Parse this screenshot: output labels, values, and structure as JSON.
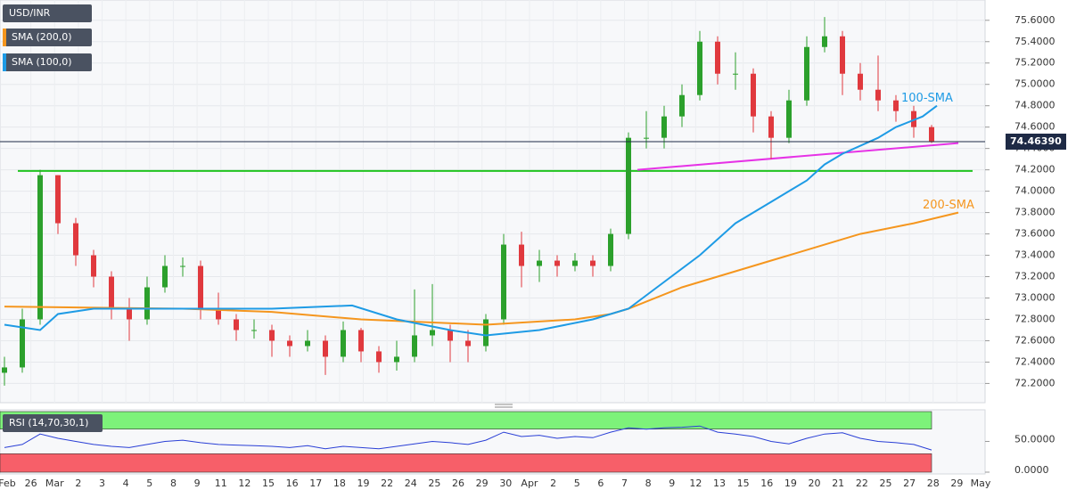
{
  "chart_data": [
    {
      "type": "candlestick",
      "title": "USD/INR",
      "up_color": "#2ca02c",
      "down_color": "#e0393e",
      "xlim": [
        -0.25,
        55
      ],
      "ylim": [
        72.02,
        75.79
      ],
      "yticks": [
        {
          "value": 72.2,
          "label": "72.2000"
        },
        {
          "value": 72.4,
          "label": "72.4000"
        },
        {
          "value": 72.6,
          "label": "72.6000"
        },
        {
          "value": 72.8,
          "label": "72.8000"
        },
        {
          "value": 73.0,
          "label": "73.0000"
        },
        {
          "value": 73.2,
          "label": "73.2000"
        },
        {
          "value": 73.4,
          "label": "73.4000"
        },
        {
          "value": 73.6,
          "label": "73.6000"
        },
        {
          "value": 73.8,
          "label": "73.8000"
        },
        {
          "value": 74.0,
          "label": "74.0000"
        },
        {
          "value": 74.2,
          "label": "74.2000"
        },
        {
          "value": 74.4,
          "label": "74.4000"
        },
        {
          "value": 74.6,
          "label": "74.6000"
        },
        {
          "value": 74.8,
          "label": "74.8000"
        },
        {
          "value": 75.0,
          "label": "75.0000"
        },
        {
          "value": 75.2,
          "label": "75.2000"
        },
        {
          "value": 75.4,
          "label": "75.4000"
        },
        {
          "value": 75.6,
          "label": "75.6000"
        }
      ],
      "xtick_labels": [
        "Feb",
        "26",
        "Mar",
        "2",
        "3",
        "4",
        "5",
        "8",
        "9",
        "11",
        "12",
        "15",
        "16",
        "17",
        "18",
        "19",
        "22",
        "24",
        "25",
        "26",
        "29",
        "30",
        "Apr",
        "2",
        "5",
        "6",
        "7",
        "8",
        "9",
        "12",
        "13",
        "15",
        "16",
        "19",
        "20",
        "21",
        "22",
        "25",
        "27",
        "28",
        "29",
        "May"
      ],
      "grid": true,
      "open": [
        72.3,
        72.35,
        72.8,
        74.15,
        73.7,
        73.4,
        73.2,
        72.9,
        72.8,
        73.1,
        73.3,
        73.3,
        72.9,
        72.8,
        72.7,
        72.7,
        72.6,
        72.55,
        72.6,
        72.45,
        72.7,
        72.5,
        72.4,
        72.45,
        72.65,
        72.7,
        72.6,
        72.55,
        72.8,
        73.5,
        73.3,
        73.35,
        73.3,
        73.35,
        73.3,
        73.6,
        74.5,
        74.5,
        74.7,
        74.9,
        75.4,
        75.1,
        75.1,
        74.7,
        74.5,
        74.85,
        75.35,
        75.45,
        75.1,
        74.95,
        74.85,
        74.75,
        74.6
      ],
      "high": [
        72.45,
        72.9,
        74.2,
        74.15,
        73.75,
        73.45,
        73.25,
        73.0,
        73.2,
        73.4,
        73.38,
        73.35,
        73.05,
        72.85,
        72.8,
        72.75,
        72.65,
        72.7,
        72.65,
        72.78,
        72.72,
        72.55,
        72.6,
        73.08,
        73.13,
        72.75,
        72.7,
        72.85,
        73.6,
        73.62,
        73.45,
        73.4,
        73.42,
        73.4,
        73.65,
        74.55,
        74.75,
        74.8,
        75.0,
        75.5,
        75.45,
        75.3,
        75.15,
        74.75,
        74.95,
        75.45,
        75.63,
        75.5,
        75.2,
        75.27,
        74.9,
        74.8,
        74.62
      ],
      "low": [
        72.18,
        72.3,
        72.75,
        73.6,
        73.3,
        73.1,
        72.8,
        72.6,
        72.75,
        73.05,
        73.2,
        72.8,
        72.75,
        72.6,
        72.62,
        72.45,
        72.45,
        72.5,
        72.28,
        72.4,
        72.4,
        72.3,
        72.32,
        72.4,
        72.55,
        72.4,
        72.4,
        72.5,
        72.75,
        73.1,
        73.15,
        73.2,
        73.25,
        73.2,
        73.25,
        73.55,
        74.4,
        74.4,
        74.6,
        74.85,
        75.0,
        74.95,
        74.55,
        74.3,
        74.45,
        74.8,
        75.3,
        74.9,
        74.85,
        74.75,
        74.65,
        74.5,
        74.45
      ],
      "close": [
        72.35,
        72.8,
        74.15,
        73.7,
        73.4,
        73.2,
        72.9,
        72.8,
        73.1,
        73.3,
        73.3,
        72.9,
        72.8,
        72.7,
        72.7,
        72.6,
        72.55,
        72.6,
        72.45,
        72.7,
        72.5,
        72.4,
        72.45,
        72.65,
        72.7,
        72.6,
        72.55,
        72.8,
        73.5,
        73.3,
        73.35,
        73.3,
        73.35,
        73.3,
        73.6,
        74.5,
        74.5,
        74.7,
        74.9,
        75.4,
        75.1,
        75.1,
        74.7,
        74.5,
        74.85,
        75.35,
        75.45,
        75.1,
        74.95,
        74.85,
        74.75,
        74.6,
        74.46
      ],
      "series": [
        {
          "name": "SMA (200,0)",
          "label": "200-SMA",
          "color": "#f5961e",
          "x": [
            0,
            10,
            15,
            20,
            27,
            32,
            34,
            35,
            38,
            40,
            43,
            45,
            48,
            51,
            53.5
          ],
          "values": [
            72.92,
            72.9,
            72.87,
            72.8,
            72.75,
            72.8,
            72.85,
            72.9,
            73.1,
            73.2,
            73.35,
            73.45,
            73.6,
            73.7,
            73.8
          ]
        },
        {
          "name": "SMA (100,0)",
          "label": "100-SMA",
          "color": "#1e9be5",
          "x": [
            0,
            2,
            3,
            5,
            10,
            15,
            19.5,
            22,
            25,
            27,
            30,
            33,
            35,
            37,
            39,
            41,
            43,
            45,
            46,
            47,
            49,
            50,
            51.5,
            52.3
          ],
          "values": [
            72.75,
            72.7,
            72.85,
            72.9,
            72.9,
            72.9,
            72.93,
            72.8,
            72.7,
            72.65,
            72.7,
            72.8,
            72.9,
            73.15,
            73.4,
            73.7,
            73.9,
            74.1,
            74.25,
            74.35,
            74.5,
            74.6,
            74.7,
            74.8
          ]
        }
      ],
      "support": {
        "value": 74.19,
        "color": "#1fc31f",
        "x": [
          0.75,
          54.3
        ]
      },
      "trendline": {
        "color": "#e632e6",
        "x": [
          35.5,
          53.5
        ],
        "values": [
          74.2,
          74.45
        ]
      },
      "last_price": {
        "value": 74.4639,
        "label": "74.46390"
      }
    },
    {
      "type": "line",
      "title": "RSI (14,70,30,1)",
      "color": "#2a3fd6",
      "xlim": [
        -0.25,
        55
      ],
      "ylim": [
        0,
        98.5
      ],
      "yticks": [
        {
          "value": 50,
          "label": "50.0000"
        },
        {
          "value": 0,
          "label": "0.0000"
        }
      ],
      "bands": [
        {
          "from": 70,
          "to": 98.5,
          "color": "#7df27a"
        },
        {
          "from": 0,
          "to": 30,
          "color": "#f75f69"
        }
      ],
      "values": [
        40,
        45,
        62,
        55,
        50,
        45,
        42,
        40,
        45,
        50,
        52,
        48,
        45,
        44,
        43,
        42,
        40,
        43,
        38,
        42,
        40,
        38,
        42,
        46,
        50,
        48,
        45,
        52,
        65,
        58,
        60,
        55,
        58,
        56,
        65,
        72,
        70,
        72,
        73,
        75,
        65,
        62,
        58,
        50,
        46,
        55,
        62,
        64,
        55,
        50,
        48,
        45,
        36
      ]
    }
  ]
}
